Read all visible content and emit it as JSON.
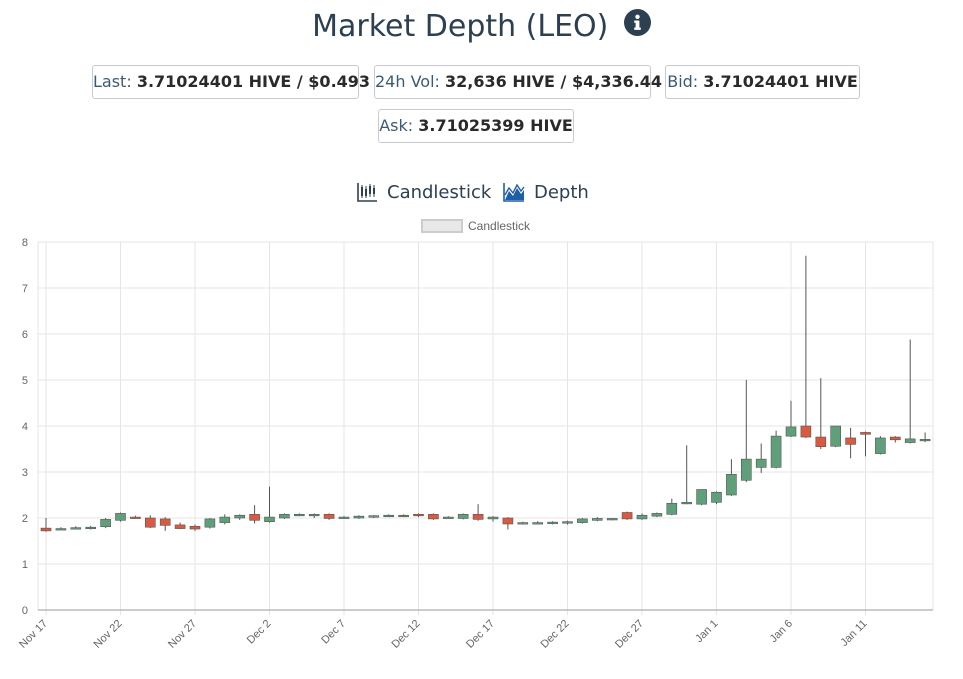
{
  "header": {
    "title": "Market Depth (LEO)",
    "info_icon": "info-circle-icon"
  },
  "stats": {
    "last_label": "Last:",
    "last_value": "3.71024401 HIVE / $0.493",
    "vol_label": "24h Vol:",
    "vol_value": "32,636 HIVE / $4,336.44",
    "bid_label": "Bid:",
    "bid_value": "3.71024401 HIVE",
    "ask_label": "Ask:",
    "ask_value": "3.71025399 HIVE"
  },
  "tabs": [
    {
      "label": "Candlestick",
      "icon": "candlestick-icon"
    },
    {
      "label": "Depth",
      "icon": "depth-icon"
    }
  ],
  "colors": {
    "up": "#5fa07a",
    "down": "#d95a40",
    "wick": "#555555",
    "grid": "#e5e5e5",
    "title": "#2c4052"
  },
  "chart_data": {
    "type": "candlestick",
    "legend": "Candlestick",
    "ylim": [
      0,
      8
    ],
    "yticks": [
      0,
      1,
      2,
      3,
      4,
      5,
      6,
      7,
      8
    ],
    "x_tick_labels": [
      "Nov 17",
      "Nov 22",
      "Nov 27",
      "Dec 2",
      "Dec 7",
      "Dec 12",
      "Dec 17",
      "Dec 22",
      "Dec 27",
      "Jan 1",
      "Jan 6",
      "Jan 11"
    ],
    "x_tick_day_index": [
      0,
      5,
      10,
      15,
      20,
      25,
      30,
      35,
      40,
      45,
      50,
      55
    ],
    "days": 60,
    "candles": [
      {
        "date": "Nov 17",
        "o": 1.78,
        "h": 2.0,
        "l": 1.7,
        "c": 1.72
      },
      {
        "date": "Nov 18",
        "o": 1.76,
        "h": 1.8,
        "l": 1.74,
        "c": 1.77
      },
      {
        "date": "Nov 19",
        "o": 1.78,
        "h": 1.82,
        "l": 1.76,
        "c": 1.79
      },
      {
        "date": "Nov 20",
        "o": 1.79,
        "h": 1.83,
        "l": 1.75,
        "c": 1.8
      },
      {
        "date": "Nov 21",
        "o": 1.81,
        "h": 2.0,
        "l": 1.78,
        "c": 1.97
      },
      {
        "date": "Nov 22",
        "o": 1.95,
        "h": 2.12,
        "l": 1.92,
        "c": 2.1
      },
      {
        "date": "Nov 23",
        "o": 2.02,
        "h": 2.05,
        "l": 1.98,
        "c": 2.0
      },
      {
        "date": "Nov 24",
        "o": 2.0,
        "h": 2.06,
        "l": 1.78,
        "c": 1.8
      },
      {
        "date": "Nov 25",
        "o": 1.98,
        "h": 2.02,
        "l": 1.72,
        "c": 1.84
      },
      {
        "date": "Nov 26",
        "o": 1.85,
        "h": 1.9,
        "l": 1.76,
        "c": 1.77
      },
      {
        "date": "Nov 27",
        "o": 1.82,
        "h": 1.86,
        "l": 1.72,
        "c": 1.76
      },
      {
        "date": "Nov 28",
        "o": 1.8,
        "h": 2.0,
        "l": 1.77,
        "c": 1.98
      },
      {
        "date": "Nov 29",
        "o": 1.9,
        "h": 2.08,
        "l": 1.86,
        "c": 2.02
      },
      {
        "date": "Nov 30",
        "o": 2.0,
        "h": 2.08,
        "l": 1.96,
        "c": 2.06
      },
      {
        "date": "Dec 1",
        "o": 2.08,
        "h": 2.28,
        "l": 1.88,
        "c": 1.95
      },
      {
        "date": "Dec 2",
        "o": 1.92,
        "h": 2.68,
        "l": 1.9,
        "c": 2.02
      },
      {
        "date": "Dec 3",
        "o": 2.0,
        "h": 2.1,
        "l": 1.98,
        "c": 2.08
      },
      {
        "date": "Dec 4",
        "o": 2.06,
        "h": 2.1,
        "l": 2.04,
        "c": 2.08
      },
      {
        "date": "Dec 5",
        "o": 2.06,
        "h": 2.1,
        "l": 2.0,
        "c": 2.08
      },
      {
        "date": "Dec 6",
        "o": 2.08,
        "h": 2.1,
        "l": 1.96,
        "c": 1.99
      },
      {
        "date": "Dec 7",
        "o": 2.0,
        "h": 2.04,
        "l": 1.98,
        "c": 2.02
      },
      {
        "date": "Dec 8",
        "o": 2.0,
        "h": 2.06,
        "l": 1.98,
        "c": 2.04
      },
      {
        "date": "Dec 9",
        "o": 2.02,
        "h": 2.06,
        "l": 2.0,
        "c": 2.05
      },
      {
        "date": "Dec 10",
        "o": 2.04,
        "h": 2.08,
        "l": 2.02,
        "c": 2.06
      },
      {
        "date": "Dec 11",
        "o": 2.04,
        "h": 2.08,
        "l": 2.02,
        "c": 2.06
      },
      {
        "date": "Dec 12",
        "o": 2.08,
        "h": 2.1,
        "l": 2.02,
        "c": 2.05
      },
      {
        "date": "Dec 13",
        "o": 2.08,
        "h": 2.1,
        "l": 1.96,
        "c": 1.98
      },
      {
        "date": "Dec 14",
        "o": 2.0,
        "h": 2.04,
        "l": 1.98,
        "c": 2.02
      },
      {
        "date": "Dec 15",
        "o": 1.99,
        "h": 2.1,
        "l": 1.97,
        "c": 2.08
      },
      {
        "date": "Dec 16",
        "o": 2.08,
        "h": 2.3,
        "l": 1.94,
        "c": 1.97
      },
      {
        "date": "Dec 17",
        "o": 1.98,
        "h": 2.04,
        "l": 1.92,
        "c": 2.02
      },
      {
        "date": "Dec 18",
        "o": 2.0,
        "h": 2.02,
        "l": 1.75,
        "c": 1.87
      },
      {
        "date": "Dec 19",
        "o": 1.88,
        "h": 1.92,
        "l": 1.86,
        "c": 1.9
      },
      {
        "date": "Dec 20",
        "o": 1.88,
        "h": 1.93,
        "l": 1.86,
        "c": 1.9
      },
      {
        "date": "Dec 21",
        "o": 1.88,
        "h": 1.93,
        "l": 1.86,
        "c": 1.91
      },
      {
        "date": "Dec 22",
        "o": 1.89,
        "h": 1.94,
        "l": 1.86,
        "c": 1.92
      },
      {
        "date": "Dec 23",
        "o": 1.9,
        "h": 2.0,
        "l": 1.88,
        "c": 1.98
      },
      {
        "date": "Dec 24",
        "o": 1.95,
        "h": 2.02,
        "l": 1.93,
        "c": 1.99
      },
      {
        "date": "Dec 25",
        "o": 1.97,
        "h": 2.0,
        "l": 1.95,
        "c": 1.99
      },
      {
        "date": "Dec 26",
        "o": 2.12,
        "h": 2.14,
        "l": 1.96,
        "c": 1.98
      },
      {
        "date": "Dec 27",
        "o": 1.98,
        "h": 2.1,
        "l": 1.96,
        "c": 2.06
      },
      {
        "date": "Dec 28",
        "o": 2.04,
        "h": 2.12,
        "l": 2.02,
        "c": 2.1
      },
      {
        "date": "Dec 29",
        "o": 2.08,
        "h": 2.42,
        "l": 2.06,
        "c": 2.32
      },
      {
        "date": "Dec 30",
        "o": 2.32,
        "h": 3.58,
        "l": 2.3,
        "c": 2.34
      },
      {
        "date": "Dec 31",
        "o": 2.3,
        "h": 2.62,
        "l": 2.28,
        "c": 2.62
      },
      {
        "date": "Jan 1",
        "o": 2.34,
        "h": 2.58,
        "l": 2.3,
        "c": 2.56
      },
      {
        "date": "Jan 2",
        "o": 2.5,
        "h": 3.28,
        "l": 2.48,
        "c": 2.95
      },
      {
        "date": "Jan 3",
        "o": 2.82,
        "h": 5.0,
        "l": 2.78,
        "c": 3.28
      },
      {
        "date": "Jan 4",
        "o": 3.1,
        "h": 3.62,
        "l": 2.98,
        "c": 3.28
      },
      {
        "date": "Jan 5",
        "o": 3.1,
        "h": 3.9,
        "l": 3.08,
        "c": 3.78
      },
      {
        "date": "Jan 6",
        "o": 3.78,
        "h": 4.55,
        "l": 3.76,
        "c": 3.98
      },
      {
        "date": "Jan 7",
        "o": 4.0,
        "h": 7.7,
        "l": 3.74,
        "c": 3.76
      },
      {
        "date": "Jan 8",
        "o": 3.76,
        "h": 5.04,
        "l": 3.5,
        "c": 3.55
      },
      {
        "date": "Jan 9",
        "o": 3.56,
        "h": 4.0,
        "l": 3.54,
        "c": 4.0
      },
      {
        "date": "Jan 10",
        "o": 3.74,
        "h": 3.96,
        "l": 3.3,
        "c": 3.6
      },
      {
        "date": "Jan 11",
        "o": 3.86,
        "h": 3.88,
        "l": 3.34,
        "c": 3.82
      },
      {
        "date": "Jan 12",
        "o": 3.4,
        "h": 3.78,
        "l": 3.38,
        "c": 3.74
      },
      {
        "date": "Jan 13",
        "o": 3.76,
        "h": 3.78,
        "l": 3.64,
        "c": 3.7
      },
      {
        "date": "Jan 14",
        "o": 3.64,
        "h": 5.88,
        "l": 3.62,
        "c": 3.72
      },
      {
        "date": "Jan 15",
        "o": 3.7,
        "h": 3.86,
        "l": 3.65,
        "c": 3.71
      }
    ]
  }
}
